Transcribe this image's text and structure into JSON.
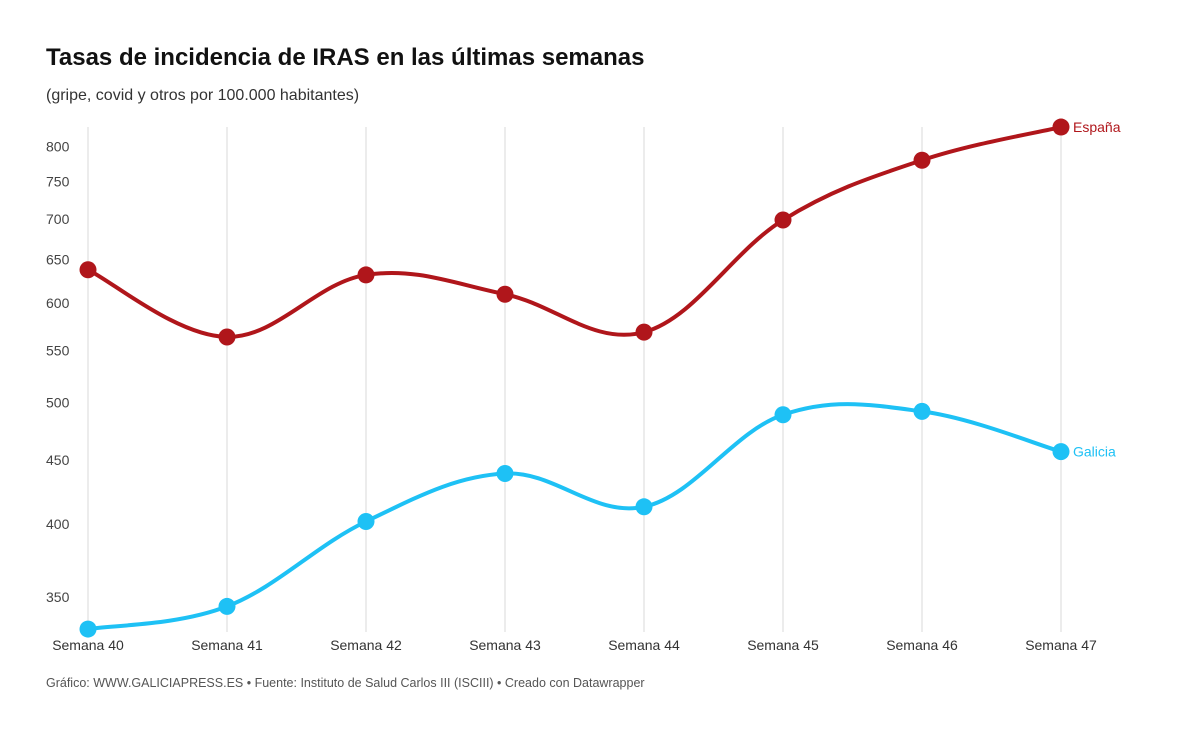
{
  "chart_data": {
    "type": "line",
    "title": "Tasas de incidencia de IRAS en las últimas semanas",
    "subtitle": "(gripe, covid y otros por 100.000 habitantes)",
    "categories": [
      "Semana 40",
      "Semana 41",
      "Semana 42",
      "Semana 43",
      "Semana 44",
      "Semana 45",
      "Semana 46",
      "Semana 47"
    ],
    "y_scale": "log",
    "ylim": [
      325,
      830
    ],
    "yticks": [
      350,
      400,
      450,
      500,
      550,
      600,
      650,
      700,
      750,
      800
    ],
    "grid": "vertical",
    "series": [
      {
        "name": "España",
        "color": "#b0161b",
        "values": [
          638,
          564,
          632,
          610,
          569,
          699,
          780,
          829
        ]
      },
      {
        "name": "Galicia",
        "color": "#1ec1f5",
        "values": [
          330,
          344,
          402,
          439,
          413,
          489,
          492,
          457
        ]
      }
    ],
    "footer": "Gráfico: WWW.GALICIAPRESS.ES • Fuente: Instituto de Salud Carlos III (ISCIII) • Creado con Datawrapper"
  }
}
